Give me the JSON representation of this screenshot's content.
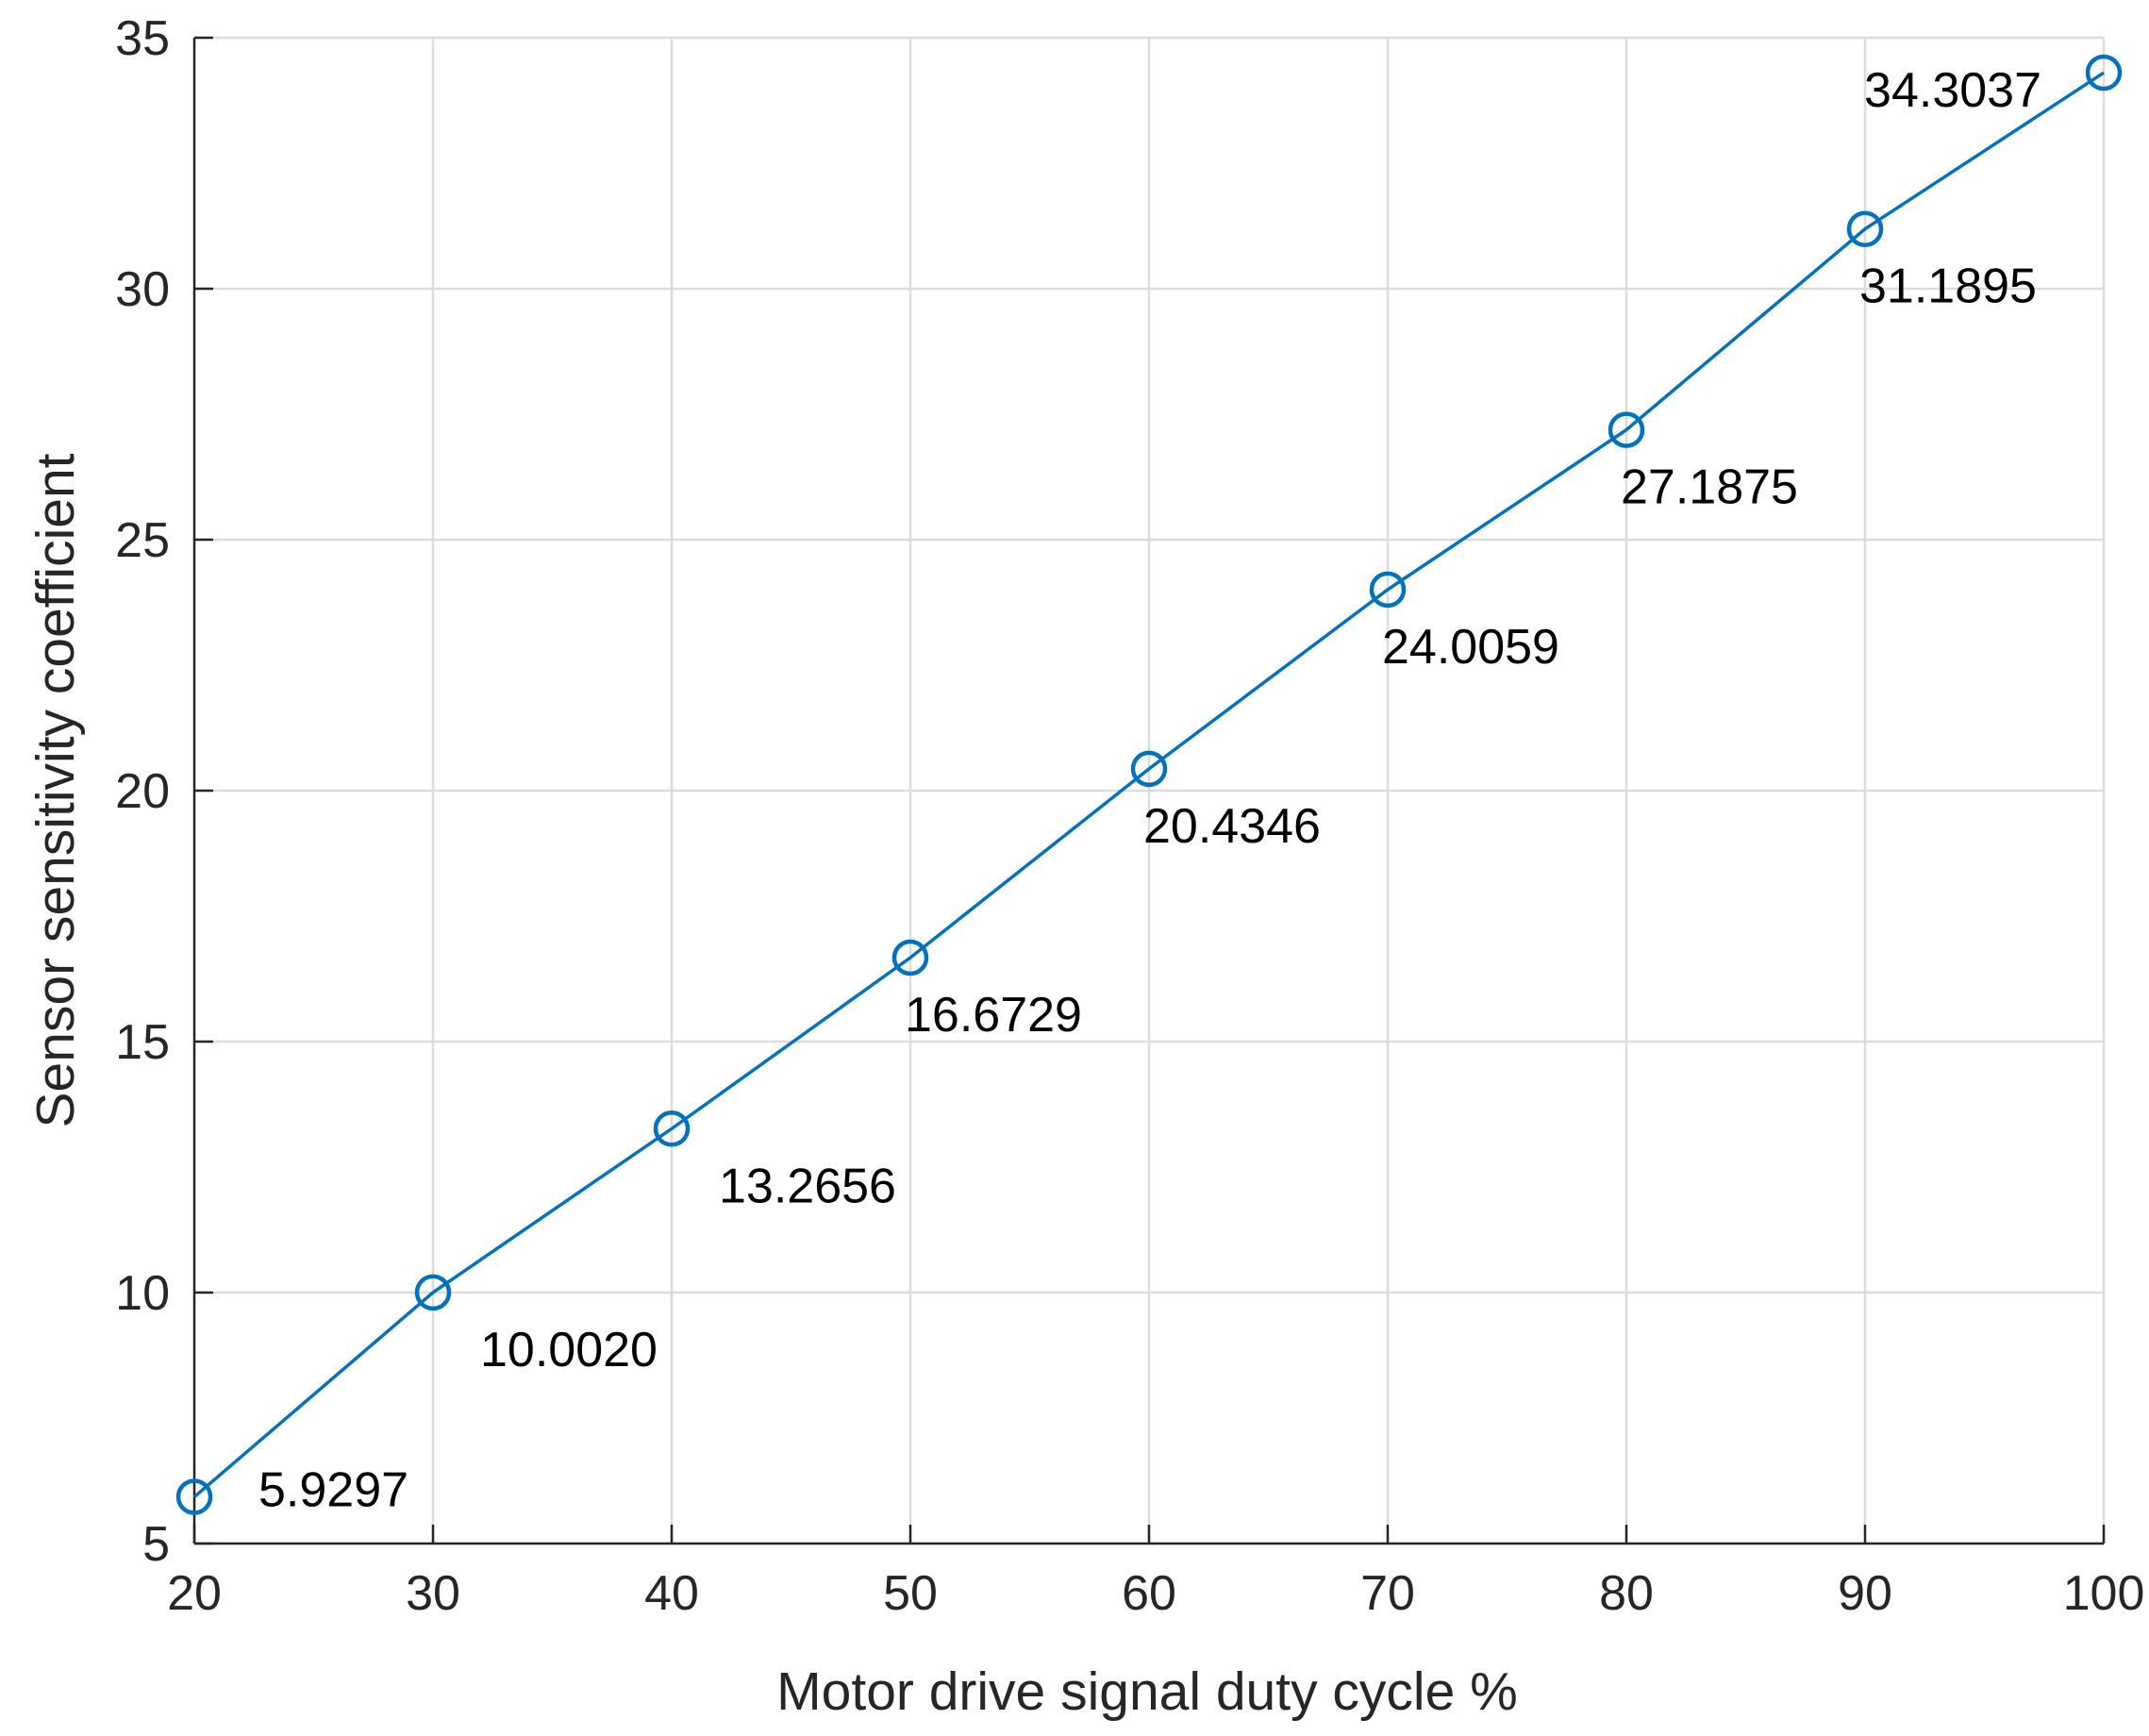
{
  "chart_data": {
    "type": "line",
    "xlabel": "Motor drive signal duty cycle %",
    "ylabel": "Sensor sensitivity coefficient",
    "xlim": [
      20,
      100
    ],
    "ylim": [
      5,
      35
    ],
    "xticks": [
      20,
      30,
      40,
      50,
      60,
      70,
      80,
      90,
      100
    ],
    "yticks": [
      5,
      10,
      15,
      20,
      25,
      30,
      35
    ],
    "grid": true,
    "marker": "circle",
    "series_color": "#0072BD",
    "series": [
      {
        "x": [
          20,
          30,
          40,
          50,
          60,
          70,
          80,
          90,
          100
        ],
        "y": [
          5.9297,
          10.002,
          13.2656,
          16.6729,
          20.4346,
          24.0059,
          27.1875,
          31.1895,
          34.3037
        ],
        "labels": [
          "5.9297",
          "10.0020",
          "13.2656",
          "16.6729",
          "20.4346",
          "24.0059",
          "27.1875",
          "31.1895",
          "34.3037"
        ]
      }
    ]
  }
}
